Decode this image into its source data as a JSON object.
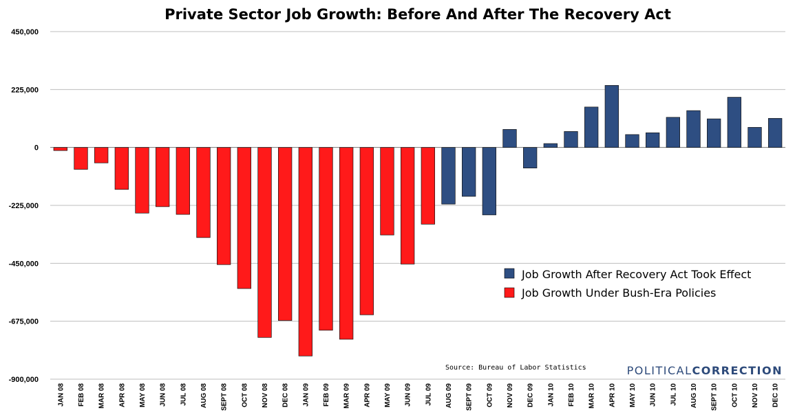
{
  "chart_data": {
    "type": "bar",
    "title": "Private Sector Job Growth: Before And After The Recovery Act",
    "xlabel": "",
    "ylabel": "",
    "ylim": [
      -900000,
      450000
    ],
    "yticks": [
      450000,
      225000,
      0,
      -225000,
      -450000,
      -675000,
      -900000
    ],
    "ytick_labels": [
      "450,000",
      "225,000",
      "0",
      "-225,000",
      "-450,000",
      "-675,000",
      "-900,000"
    ],
    "grid": true,
    "legend_position": "right",
    "categories": [
      "JAN 08",
      "FEB 08",
      "MAR 08",
      "APR 08",
      "MAY 08",
      "JUN 08",
      "JUL 08",
      "AUG 08",
      "SEPT 08",
      "OCT 08",
      "NOV 08",
      "DEC 08",
      "JAN 09",
      "FEB 09",
      "MAR 09",
      "APR 09",
      "MAY 09",
      "JUN 09",
      "JUL 09",
      "AUG 09",
      "SEPT 09",
      "OCT 09",
      "NOV 09",
      "DEC 09",
      "JAN 10",
      "FEB 10",
      "MAR 10",
      "APR 10",
      "MAY 10",
      "JUN 10",
      "JUL 10",
      "AUG 10",
      "SEPT 10",
      "OCT 10",
      "NOV 10",
      "DEC 10"
    ],
    "values": [
      -12000,
      -85000,
      -60000,
      -163000,
      -255000,
      -230000,
      -260000,
      -350000,
      -455000,
      -548000,
      -738000,
      -672000,
      -810000,
      -710000,
      -745000,
      -650000,
      -340000,
      -453000,
      -298000,
      -220000,
      -190000,
      -262000,
      70000,
      -80000,
      15000,
      62000,
      157000,
      241000,
      50000,
      57000,
      117000,
      143000,
      111000,
      195000,
      78000,
      113000
    ],
    "series": [
      {
        "name": "Job Growth After Recovery Act Took Effect",
        "color": "#2e4e82",
        "start_index": 19,
        "end_index": 35
      },
      {
        "name": "Job Growth Under Bush-Era Policies",
        "color": "#ff1a1a",
        "start_index": 0,
        "end_index": 18
      }
    ],
    "annotations": {
      "source": "Source: Bureau of Labor Statistics",
      "brand_light": "POLITICAL",
      "brand_bold": "CORRECTION"
    }
  }
}
